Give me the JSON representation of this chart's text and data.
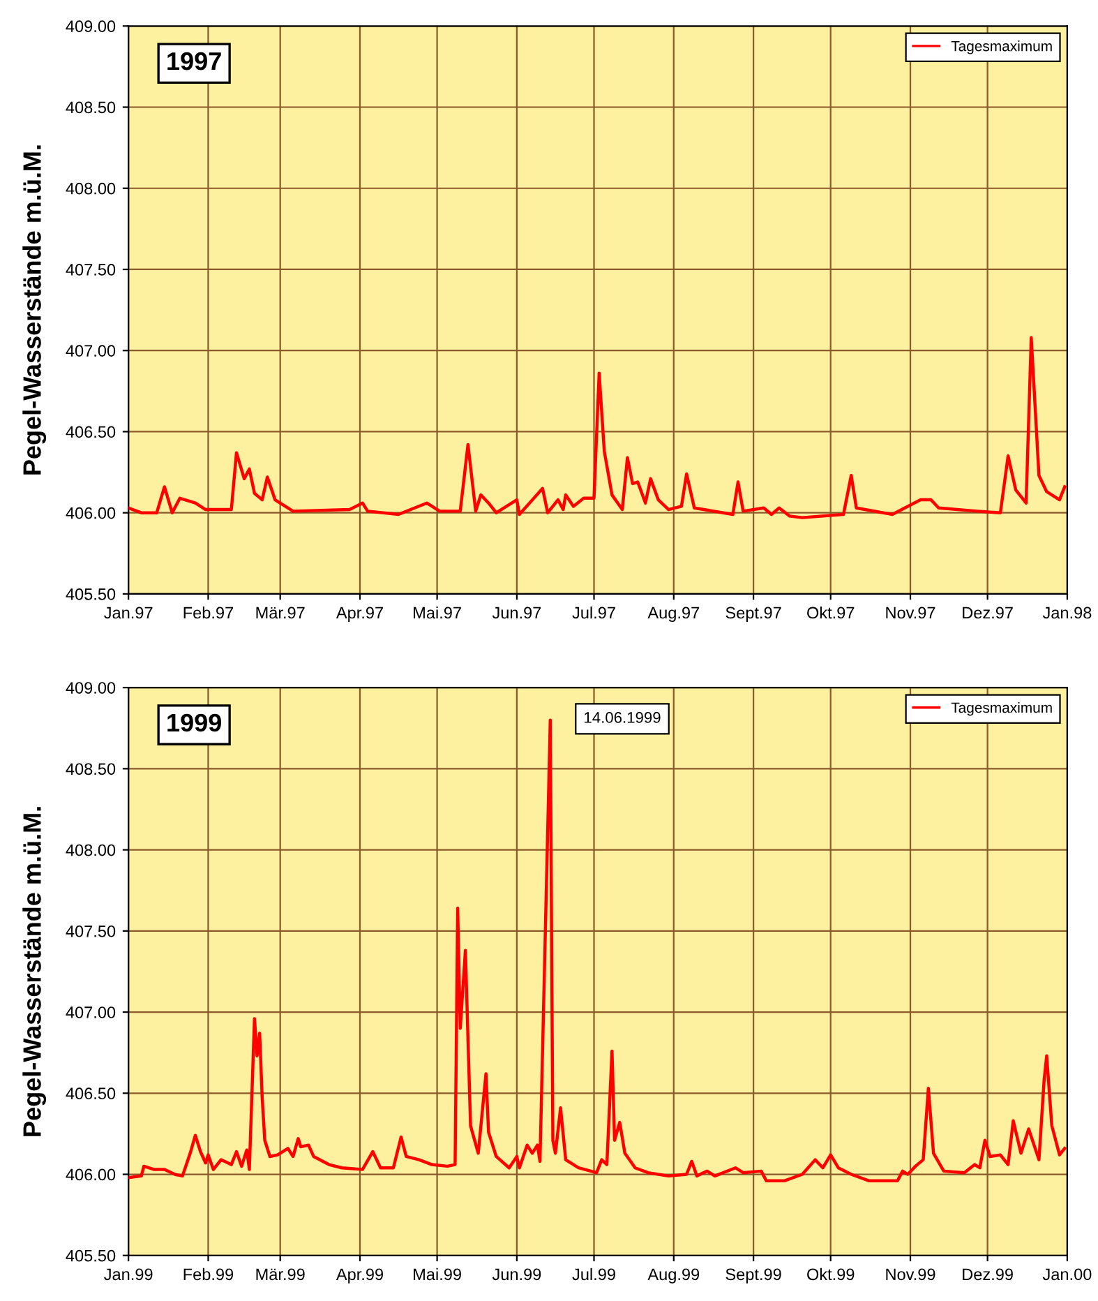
{
  "chart_data": [
    {
      "type": "line",
      "title": "1997",
      "ylabel": "Pegel-Wasserstände m.ü.M.",
      "legend": "top right",
      "grid": true,
      "marker": "none",
      "line_style": "solid",
      "xlim": [
        "1997-01-01",
        "1998-01-01"
      ],
      "ylim": [
        405.5,
        409.0
      ],
      "xticks": [
        {
          "value": "1997-01-01",
          "label": "Jan.97"
        },
        {
          "value": "1997-02-01",
          "label": "Feb.97"
        },
        {
          "value": "1997-03-01",
          "label": "Mär.97"
        },
        {
          "value": "1997-04-01",
          "label": "Apr.97"
        },
        {
          "value": "1997-05-01",
          "label": "Mai.97"
        },
        {
          "value": "1997-06-01",
          "label": "Jun.97"
        },
        {
          "value": "1997-07-01",
          "label": "Jul.97"
        },
        {
          "value": "1997-08-01",
          "label": "Aug.97"
        },
        {
          "value": "1997-09-01",
          "label": "Sept.97"
        },
        {
          "value": "1997-10-01",
          "label": "Okt.97"
        },
        {
          "value": "1997-11-01",
          "label": "Nov.97"
        },
        {
          "value": "1997-12-01",
          "label": "Dez.97"
        },
        {
          "value": "1998-01-01",
          "label": "Jan.98"
        }
      ],
      "yticks": [
        {
          "value": 405.5,
          "label": "405.50"
        },
        {
          "value": 406.0,
          "label": "406.00"
        },
        {
          "value": 406.5,
          "label": "406.50"
        },
        {
          "value": 407.0,
          "label": "407.00"
        },
        {
          "value": 407.5,
          "label": "407.50"
        },
        {
          "value": 408.0,
          "label": "408.00"
        },
        {
          "value": 408.5,
          "label": "408.50"
        },
        {
          "value": 409.0,
          "label": "409.00"
        }
      ],
      "series": [
        {
          "name": "Tagesmaximum",
          "color": "#ff0000",
          "x": [
            "1997-01-01",
            "1997-01-06",
            "1997-01-12",
            "1997-01-15",
            "1997-01-18",
            "1997-01-21",
            "1997-01-27",
            "1997-01-31",
            "1997-02-10",
            "1997-02-12",
            "1997-02-15",
            "1997-02-17",
            "1997-02-19",
            "1997-02-22",
            "1997-02-24",
            "1997-02-27",
            "1997-03-06",
            "1997-03-28",
            "1997-04-02",
            "1997-04-04",
            "1997-04-16",
            "1997-04-27",
            "1997-05-02",
            "1997-05-10",
            "1997-05-13",
            "1997-05-16",
            "1997-05-18",
            "1997-05-21",
            "1997-05-24",
            "1997-06-01",
            "1997-06-02",
            "1997-06-11",
            "1997-06-13",
            "1997-06-17",
            "1997-06-19",
            "1997-06-20",
            "1997-06-23",
            "1997-06-27",
            "1997-07-01",
            "1997-07-03",
            "1997-07-05",
            "1997-07-08",
            "1997-07-12",
            "1997-07-14",
            "1997-07-16",
            "1997-07-18",
            "1997-07-21",
            "1997-07-23",
            "1997-07-26",
            "1997-07-30",
            "1997-08-04",
            "1997-08-06",
            "1997-08-09",
            "1997-08-24",
            "1997-08-26",
            "1997-08-28",
            "1997-09-05",
            "1997-09-08",
            "1997-09-11",
            "1997-09-15",
            "1997-09-20",
            "1997-10-06",
            "1997-10-09",
            "1997-10-11",
            "1997-10-25",
            "1997-11-05",
            "1997-11-09",
            "1997-11-12",
            "1997-11-27",
            "1997-12-06",
            "1997-12-09",
            "1997-12-12",
            "1997-12-16",
            "1997-12-18",
            "1997-12-21",
            "1997-12-24",
            "1997-12-29",
            "1997-12-31"
          ],
          "values": [
            406.03,
            406.0,
            406.0,
            406.16,
            406.0,
            406.09,
            406.06,
            406.02,
            406.02,
            406.37,
            406.21,
            406.27,
            406.12,
            406.08,
            406.22,
            406.08,
            406.01,
            406.02,
            406.06,
            406.01,
            405.99,
            406.06,
            406.01,
            406.01,
            406.42,
            406.01,
            406.11,
            406.06,
            406.0,
            406.08,
            405.99,
            406.15,
            406.0,
            406.08,
            406.02,
            406.11,
            406.04,
            406.09,
            406.09,
            406.86,
            406.38,
            406.11,
            406.02,
            406.34,
            406.18,
            406.19,
            406.06,
            406.21,
            406.08,
            406.02,
            406.04,
            406.24,
            406.03,
            405.99,
            406.19,
            406.01,
            406.03,
            405.99,
            406.03,
            405.98,
            405.97,
            405.99,
            406.23,
            406.03,
            405.99,
            406.08,
            406.08,
            406.03,
            406.01,
            406.0,
            406.35,
            406.14,
            406.06,
            407.08,
            406.23,
            406.13,
            406.08,
            406.16
          ]
        }
      ]
    },
    {
      "type": "line",
      "title": "1999",
      "ylabel": "Pegel-Wasserstände m.ü.M.",
      "legend": "top right",
      "grid": true,
      "marker": "none",
      "line_style": "solid",
      "annotations": [
        "14.06.1999"
      ],
      "xlim": [
        "1999-01-01",
        "2000-01-01"
      ],
      "ylim": [
        405.5,
        409.0
      ],
      "xticks": [
        {
          "value": "1999-01-01",
          "label": "Jan.99"
        },
        {
          "value": "1999-02-01",
          "label": "Feb.99"
        },
        {
          "value": "1999-03-01",
          "label": "Mär.99"
        },
        {
          "value": "1999-04-01",
          "label": "Apr.99"
        },
        {
          "value": "1999-05-01",
          "label": "Mai.99"
        },
        {
          "value": "1999-06-01",
          "label": "Jun.99"
        },
        {
          "value": "1999-07-01",
          "label": "Jul.99"
        },
        {
          "value": "1999-08-01",
          "label": "Aug.99"
        },
        {
          "value": "1999-09-01",
          "label": "Sept.99"
        },
        {
          "value": "1999-10-01",
          "label": "Okt.99"
        },
        {
          "value": "1999-11-01",
          "label": "Nov.99"
        },
        {
          "value": "1999-12-01",
          "label": "Dez.99"
        },
        {
          "value": "2000-01-01",
          "label": "Jan.00"
        }
      ],
      "yticks": [
        {
          "value": 405.5,
          "label": "405.50"
        },
        {
          "value": 406.0,
          "label": "406.00"
        },
        {
          "value": 406.5,
          "label": "406.50"
        },
        {
          "value": 407.0,
          "label": "407.00"
        },
        {
          "value": 407.5,
          "label": "407.50"
        },
        {
          "value": 408.0,
          "label": "408.00"
        },
        {
          "value": 408.5,
          "label": "408.50"
        },
        {
          "value": 409.0,
          "label": "409.00"
        }
      ],
      "series": [
        {
          "name": "Tagesmaximum",
          "color": "#ff0000",
          "x": [
            "1999-01-01",
            "1999-01-06",
            "1999-01-07",
            "1999-01-11",
            "1999-01-15",
            "1999-01-19",
            "1999-01-22",
            "1999-01-25",
            "1999-01-27",
            "1999-01-29",
            "1999-01-31",
            "1999-02-01",
            "1999-02-03",
            "1999-02-06",
            "1999-02-10",
            "1999-02-12",
            "1999-02-14",
            "1999-02-16",
            "1999-02-17",
            "1999-02-19",
            "1999-02-20",
            "1999-02-21",
            "1999-02-22",
            "1999-02-23",
            "1999-02-25",
            "1999-02-28",
            "1999-03-04",
            "1999-03-06",
            "1999-03-08",
            "1999-03-09",
            "1999-03-12",
            "1999-03-14",
            "1999-03-20",
            "1999-03-25",
            "1999-04-02",
            "1999-04-06",
            "1999-04-09",
            "1999-04-14",
            "1999-04-17",
            "1999-04-19",
            "1999-04-24",
            "1999-04-29",
            "1999-05-05",
            "1999-05-08",
            "1999-05-09",
            "1999-05-10",
            "1999-05-12",
            "1999-05-14",
            "1999-05-17",
            "1999-05-20",
            "1999-05-21",
            "1999-05-24",
            "1999-05-29",
            "1999-06-01",
            "1999-06-02",
            "1999-06-05",
            "1999-06-07",
            "1999-06-09",
            "1999-06-10",
            "1999-06-14",
            "1999-06-15",
            "1999-06-16",
            "1999-06-18",
            "1999-06-20",
            "1999-06-25",
            "1999-07-02",
            "1999-07-04",
            "1999-07-06",
            "1999-07-08",
            "1999-07-09",
            "1999-07-11",
            "1999-07-13",
            "1999-07-17",
            "1999-07-22",
            "1999-07-30",
            "1999-08-06",
            "1999-08-08",
            "1999-08-10",
            "1999-08-14",
            "1999-08-17",
            "1999-08-25",
            "1999-08-28",
            "1999-09-04",
            "1999-09-06",
            "1999-09-13",
            "1999-09-20",
            "1999-09-25",
            "1999-09-28",
            "1999-10-01",
            "1999-10-04",
            "1999-10-09",
            "1999-10-16",
            "1999-10-27",
            "1999-10-29",
            "1999-10-31",
            "1999-11-03",
            "1999-11-06",
            "1999-11-08",
            "1999-11-10",
            "1999-11-14",
            "1999-11-22",
            "1999-11-26",
            "1999-11-28",
            "1999-11-30",
            "1999-12-02",
            "1999-12-06",
            "1999-12-09",
            "1999-12-11",
            "1999-12-14",
            "1999-12-17",
            "1999-12-21",
            "1999-12-23",
            "1999-12-24",
            "1999-12-26",
            "1999-12-29",
            "1999-12-31"
          ],
          "values": [
            405.98,
            405.99,
            406.05,
            406.03,
            406.03,
            406.0,
            405.99,
            406.13,
            406.24,
            406.14,
            406.07,
            406.12,
            406.03,
            406.09,
            406.06,
            406.14,
            406.05,
            406.15,
            406.03,
            406.96,
            406.73,
            406.87,
            406.47,
            406.21,
            406.11,
            406.12,
            406.16,
            406.11,
            406.22,
            406.17,
            406.18,
            406.11,
            406.06,
            406.04,
            406.03,
            406.14,
            406.04,
            406.04,
            406.23,
            406.11,
            406.09,
            406.06,
            406.05,
            406.06,
            407.64,
            406.9,
            407.38,
            406.3,
            406.13,
            406.62,
            406.26,
            406.11,
            406.04,
            406.11,
            406.04,
            406.18,
            406.13,
            406.18,
            406.08,
            408.8,
            406.21,
            406.13,
            406.41,
            406.09,
            406.04,
            406.01,
            406.09,
            406.06,
            406.76,
            406.21,
            406.32,
            406.13,
            406.04,
            406.01,
            405.99,
            406.0,
            406.08,
            405.99,
            406.02,
            405.99,
            406.04,
            406.01,
            406.02,
            405.96,
            405.96,
            406.0,
            406.09,
            406.04,
            406.12,
            406.04,
            406.0,
            405.96,
            405.96,
            406.02,
            406.0,
            406.05,
            406.09,
            406.53,
            406.13,
            406.02,
            406.01,
            406.06,
            406.04,
            406.21,
            406.11,
            406.12,
            406.06,
            406.33,
            406.13,
            406.28,
            406.09,
            406.58,
            406.73,
            406.3,
            406.12,
            406.16
          ]
        }
      ]
    }
  ]
}
